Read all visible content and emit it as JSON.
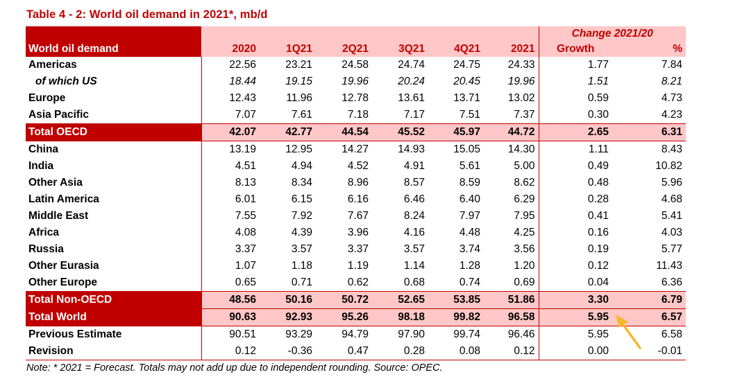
{
  "title": "Table 4 - 2: World oil demand in 2021*, mb/d",
  "header": {
    "change_label": "Change 2021/20",
    "row_label": "World oil demand",
    "columns": [
      "2020",
      "1Q21",
      "2Q21",
      "3Q21",
      "4Q21",
      "2021",
      "Growth",
      "%"
    ]
  },
  "rows": [
    {
      "label": "Americas",
      "values": [
        "22.56",
        "23.21",
        "24.58",
        "24.74",
        "24.75",
        "24.33",
        "1.77",
        "7.84"
      ]
    },
    {
      "label": "of which US",
      "values": [
        "18.44",
        "19.15",
        "19.96",
        "20.24",
        "20.45",
        "19.96",
        "1.51",
        "8.21"
      ]
    },
    {
      "label": "Europe",
      "values": [
        "12.43",
        "11.96",
        "12.78",
        "13.61",
        "13.71",
        "13.02",
        "0.59",
        "4.73"
      ]
    },
    {
      "label": "Asia Pacific",
      "values": [
        "7.07",
        "7.61",
        "7.18",
        "7.17",
        "7.51",
        "7.37",
        "0.30",
        "4.23"
      ]
    },
    {
      "label": "Total OECD",
      "values": [
        "42.07",
        "42.77",
        "44.54",
        "45.52",
        "45.97",
        "44.72",
        "2.65",
        "6.31"
      ]
    },
    {
      "label": "China",
      "values": [
        "13.19",
        "12.95",
        "14.27",
        "14.93",
        "15.05",
        "14.30",
        "1.11",
        "8.43"
      ]
    },
    {
      "label": "India",
      "values": [
        "4.51",
        "4.94",
        "4.52",
        "4.91",
        "5.61",
        "5.00",
        "0.49",
        "10.82"
      ]
    },
    {
      "label": "Other Asia",
      "values": [
        "8.13",
        "8.34",
        "8.96",
        "8.57",
        "8.59",
        "8.62",
        "0.48",
        "5.96"
      ]
    },
    {
      "label": "Latin America",
      "values": [
        "6.01",
        "6.15",
        "6.16",
        "6.46",
        "6.40",
        "6.29",
        "0.28",
        "4.68"
      ]
    },
    {
      "label": "Middle East",
      "values": [
        "7.55",
        "7.92",
        "7.67",
        "8.24",
        "7.97",
        "7.95",
        "0.41",
        "5.41"
      ]
    },
    {
      "label": "Africa",
      "values": [
        "4.08",
        "4.39",
        "3.96",
        "4.16",
        "4.48",
        "4.25",
        "0.16",
        "4.03"
      ]
    },
    {
      "label": "Russia",
      "values": [
        "3.37",
        "3.57",
        "3.37",
        "3.57",
        "3.74",
        "3.56",
        "0.19",
        "5.77"
      ]
    },
    {
      "label": "Other Eurasia",
      "values": [
        "1.07",
        "1.18",
        "1.19",
        "1.14",
        "1.28",
        "1.20",
        "0.12",
        "11.43"
      ]
    },
    {
      "label": "Other Europe",
      "values": [
        "0.65",
        "0.71",
        "0.62",
        "0.68",
        "0.74",
        "0.69",
        "0.04",
        "6.36"
      ]
    },
    {
      "label": "Total Non-OECD",
      "values": [
        "48.56",
        "50.16",
        "50.72",
        "52.65",
        "53.85",
        "51.86",
        "3.30",
        "6.79"
      ]
    },
    {
      "label": "Total World",
      "values": [
        "90.63",
        "92.93",
        "95.26",
        "98.18",
        "99.82",
        "96.58",
        "5.95",
        "6.57"
      ]
    },
    {
      "label": "Previous Estimate",
      "values": [
        "90.51",
        "93.29",
        "94.79",
        "97.90",
        "99.74",
        "96.46",
        "5.95",
        "6.58"
      ]
    },
    {
      "label": "Revision",
      "values": [
        "0.12",
        "-0.36",
        "0.47",
        "0.28",
        "0.08",
        "0.12",
        "0.00",
        "-0.01"
      ]
    }
  ],
  "note": "Note: * 2021 = Forecast. Totals may not add up due to independent rounding. Source: OPEC.",
  "colors": {
    "accent": "#c00000",
    "highlight": "#ffc7c7",
    "arrow": "#f5b82e"
  },
  "annotation_icon": "arrow-icon"
}
